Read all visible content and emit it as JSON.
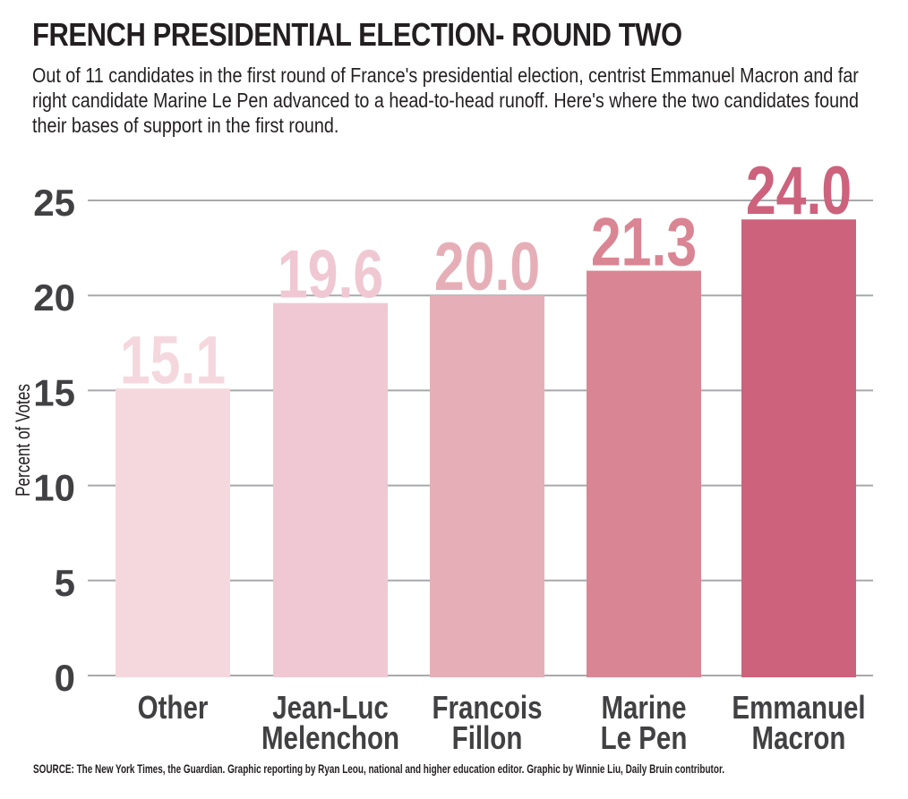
{
  "page": {
    "title": "FRENCH PRESIDENTIAL ELECTION- ROUND TWO",
    "subtitle": "Out of 11 candidates in the first round of France's presidential election, centrist Emmanuel Macron and far right candidate Marine Le Pen advanced to a head-to-head runoff. Here's where the two candidates found their bases of support in the first round.",
    "source": "SOURCE: The New York Times, the Guardian. Graphic reporting by Ryan Leou, national and higher education editor. Graphic by Winnie Liu, Daily Bruin contributor."
  },
  "chart_data": {
    "type": "bar",
    "title": "FRENCH PRESIDENTIAL ELECTION- ROUND TWO",
    "xlabel": "",
    "ylabel": "Percent of Votes",
    "ylim": [
      0,
      25
    ],
    "yticks": [
      0,
      5,
      10,
      15,
      20,
      25
    ],
    "grid": true,
    "categories": [
      [
        "Other"
      ],
      [
        "Jean-Luc",
        "Melenchon"
      ],
      [
        "Francois",
        "Fillon"
      ],
      [
        "Marine",
        "Le Pen"
      ],
      [
        "Emmanuel",
        "Macron"
      ]
    ],
    "values": [
      15.1,
      19.6,
      20.0,
      21.3,
      24.0
    ],
    "value_labels": [
      "15.1",
      "19.6",
      "20.0",
      "21.3",
      "24.0"
    ],
    "colors": [
      "#f5d8de",
      "#efc8d3",
      "#e6afb7",
      "#da8593",
      "#cd627d"
    ]
  }
}
